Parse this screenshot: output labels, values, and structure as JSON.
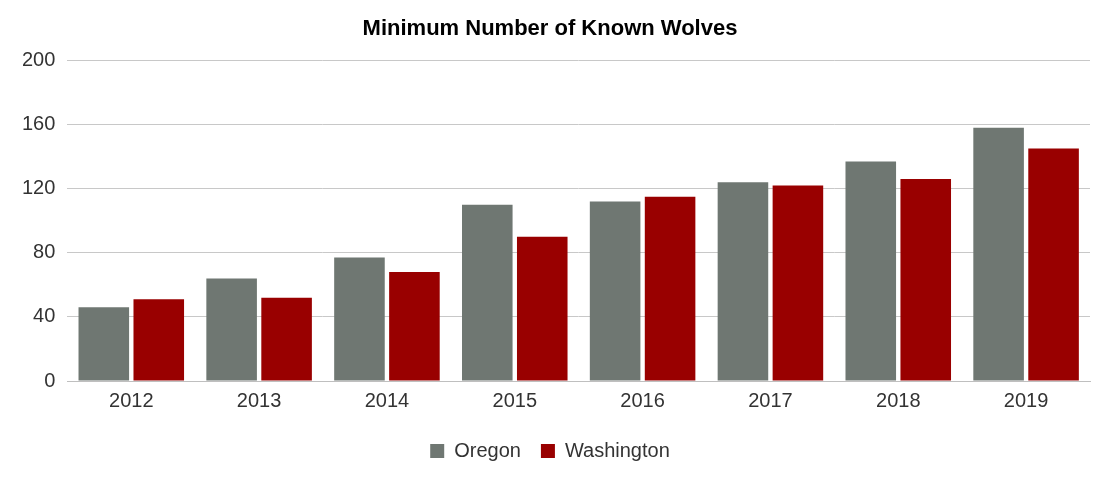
{
  "chart_data": {
    "type": "bar",
    "title": "Minimum Number of Known Wolves",
    "categories": [
      "2012",
      "2013",
      "2014",
      "2015",
      "2016",
      "2017",
      "2018",
      "2019"
    ],
    "series": [
      {
        "name": "Oregon",
        "color": "#6f7772",
        "values": [
          46,
          64,
          77,
          110,
          112,
          124,
          137,
          158
        ]
      },
      {
        "name": "Washington",
        "color": "#990000",
        "values": [
          51,
          52,
          68,
          90,
          115,
          122,
          126,
          145
        ]
      }
    ],
    "ylim": [
      0,
      200
    ],
    "yticks": [
      0,
      40,
      80,
      120,
      160,
      200
    ],
    "grid": true,
    "legend": "bottom"
  }
}
